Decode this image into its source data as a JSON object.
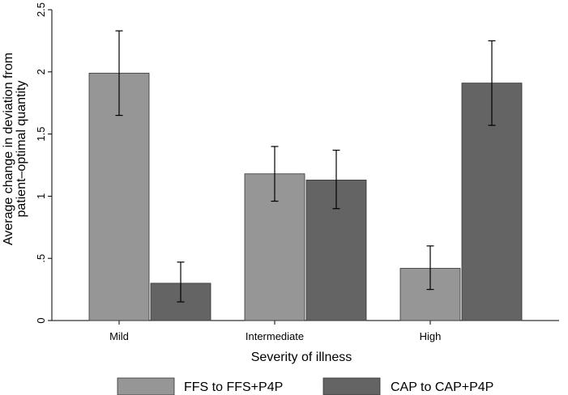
{
  "chart_data": {
    "type": "bar",
    "categories": [
      "Mild",
      "Intermediate",
      "High"
    ],
    "series": [
      {
        "name": "FFS to FFS+P4P",
        "color": "#969696",
        "values": [
          1.99,
          1.18,
          0.42
        ],
        "ci_low": [
          1.65,
          0.96,
          0.25
        ],
        "ci_high": [
          2.33,
          1.4,
          0.6
        ]
      },
      {
        "name": "CAP to CAP+P4P",
        "color": "#646464",
        "values": [
          0.3,
          1.13,
          1.91
        ],
        "ci_low": [
          0.15,
          0.9,
          1.57
        ],
        "ci_high": [
          0.47,
          1.37,
          2.25
        ]
      }
    ],
    "ylim": [
      0,
      2.5
    ],
    "yticks": [
      0,
      0.5,
      1,
      1.5,
      2,
      2.5
    ],
    "ytick_labels": [
      "0",
      ".5",
      "1",
      "1.5",
      "2",
      "2.5"
    ],
    "ylabel_line1": "Average change in deviation from",
    "ylabel_line2": "patient–optimal quantity",
    "xlabel": "Severity of illness",
    "legend_position": "bottom"
  }
}
